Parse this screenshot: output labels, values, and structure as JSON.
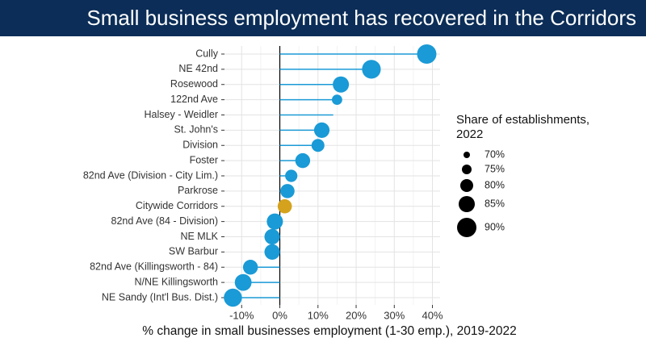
{
  "chart_data": {
    "type": "lollipop",
    "title": "Small business employment has recovered in the Corridors",
    "x_label": "% change in small businesses employment (1-30 emp.), 2019-2022",
    "categories": [
      "Cully",
      "NE 42nd",
      "Rosewood",
      "122nd Ave",
      "Halsey - Weidler",
      "St. John's",
      "Division",
      "Foster",
      "82nd Ave (Division - City Lim.)",
      "Parkrose",
      "Citywide Corridors",
      "82nd Ave (84 - Division)",
      "NE MLK",
      "SW Barbur",
      "82nd Ave (Killingsworth - 84)",
      "N/NE Killingsworth",
      "NE Sandy (Int'l Bus. Dist.)"
    ],
    "values": [
      38.5,
      24,
      16,
      15,
      14,
      11,
      10,
      6,
      3,
      2,
      1.3,
      -1.3,
      -2,
      -2,
      -7.7,
      -9.6,
      -12.3
    ],
    "sizes": [
      90,
      89,
      85,
      76,
      null,
      84,
      80,
      83,
      79,
      82,
      82,
      85,
      84,
      84,
      83,
      86,
      88
    ],
    "colors": [
      "#1a9ad6",
      "#1a9ad6",
      "#1a9ad6",
      "#1a9ad6",
      "#1a9ad6",
      "#1a9ad6",
      "#1a9ad6",
      "#1a9ad6",
      "#1a9ad6",
      "#1a9ad6",
      "#d4a21c",
      "#1a9ad6",
      "#1a9ad6",
      "#1a9ad6",
      "#1a9ad6",
      "#1a9ad6",
      "#1a9ad6"
    ],
    "xlim": [
      -14.5,
      42
    ],
    "xticks": [
      {
        "value": -10,
        "label": "-10%"
      },
      {
        "value": 0,
        "label": "0%"
      },
      {
        "value": 10,
        "label": "10%"
      },
      {
        "value": 20,
        "label": "20%"
      },
      {
        "value": 30,
        "label": "30%"
      },
      {
        "value": 40,
        "label": "40%"
      }
    ],
    "grid": true,
    "legend_title": [
      "Share of establishments,",
      "2022"
    ],
    "size_legend": [
      {
        "value": 70,
        "label": "70%"
      },
      {
        "value": 75,
        "label": "75%"
      },
      {
        "value": 80,
        "label": "80%"
      },
      {
        "value": 85,
        "label": "85%"
      },
      {
        "value": 90,
        "label": "90%"
      }
    ],
    "legend_position": "right"
  }
}
